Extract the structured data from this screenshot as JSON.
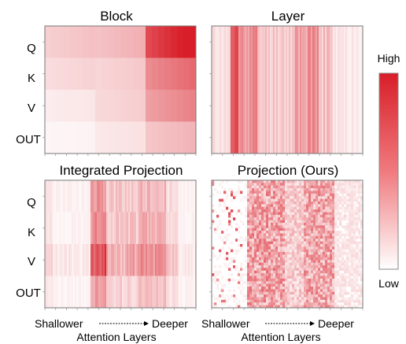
{
  "chart_data": [
    {
      "type": "heatmap",
      "title": "Block",
      "rows": [
        "Q",
        "K",
        "V",
        "OUT"
      ],
      "columns": 3,
      "values": [
        [
          0.25,
          0.32,
          0.95
        ],
        [
          0.18,
          0.22,
          0.6
        ],
        [
          0.1,
          0.2,
          0.5
        ],
        [
          0.05,
          0.12,
          0.3
        ]
      ]
    },
    {
      "type": "heatmap",
      "title": "Layer",
      "rows": [
        "Q",
        "K",
        "V",
        "OUT"
      ],
      "note": "uniform across rows; strong stripes in early-middle and late layers"
    },
    {
      "type": "heatmap",
      "title": "Integrated Projection",
      "rows": [
        "Q",
        "K",
        "V",
        "OUT"
      ],
      "note": "strongest in V rows around early-middle layers"
    },
    {
      "type": "heatmap",
      "title": "Projection (Ours)",
      "rows": [
        "Q",
        "K",
        "V",
        "OUT"
      ],
      "note": "fine-grained noisy pattern, concentrated in middle and late layers"
    }
  ],
  "colorbar": {
    "high_label": "High",
    "low_label": "Low",
    "high_color": "#e0212a",
    "low_color": "#ffffff"
  },
  "x_axis": {
    "left_label": "Shallower",
    "right_label": "Deeper",
    "title": "Attention Layers"
  }
}
